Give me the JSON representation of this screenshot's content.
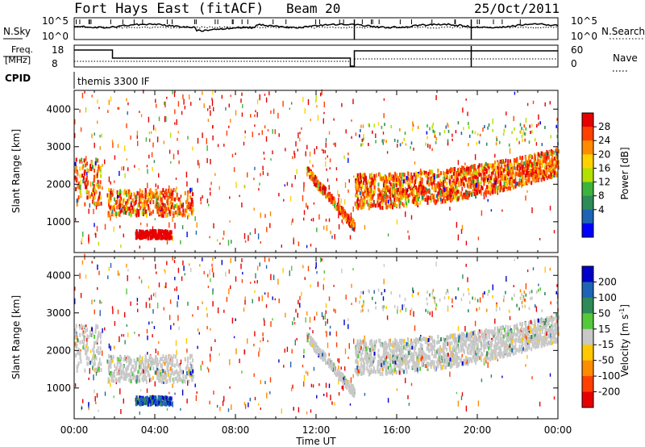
{
  "header": {
    "station": "Fort Hays East (fitACF)",
    "beam": "Beam 20",
    "date": "25/Oct/2011"
  },
  "noise_panel": {
    "left_label": "N.Sky",
    "right_label": "N.Search",
    "left_ticks": [
      "10^5",
      "10^0"
    ],
    "right_ticks": [
      "10^5",
      "10^0"
    ]
  },
  "freq_panel": {
    "left_label_1": "Freq.",
    "left_label_2": "[MHz]",
    "right_label": "Nave",
    "left_ticks": [
      "18",
      "8"
    ],
    "right_ticks": [
      "60",
      "0"
    ]
  },
  "cpid": {
    "label": "CPID",
    "value": "themis 3300 IF"
  },
  "chart_data": [
    {
      "type": "heatmap",
      "title": "",
      "xlabel": "Time UT",
      "ylabel": "Slant Range [km]",
      "x_ticks": [
        "00:00",
        "04:00",
        "08:00",
        "12:00",
        "16:00",
        "20:00",
        "00:00"
      ],
      "y_ticks": [
        1000,
        2000,
        3000,
        4000
      ],
      "xlim_hours": [
        0,
        24
      ],
      "ylim_km": [
        180,
        4500
      ],
      "colorbar": {
        "label": "Power [dB]",
        "ticks": [
          "28",
          "24",
          "20",
          "16",
          "12",
          "8",
          "4"
        ],
        "colors": [
          "#e60000",
          "#ff4000",
          "#ff8c00",
          "#ffd200",
          "#b4e000",
          "#3cb43c",
          "#2e8b57",
          "#1e64b4",
          "#0000ff"
        ]
      },
      "features": [
        {
          "name": "ground scatter band",
          "start_hour": 0.0,
          "end_hour": 1.3,
          "range_km": [
            1400,
            2600
          ]
        },
        {
          "name": "ground scatter band",
          "start_hour": 1.6,
          "end_hour": 5.9,
          "range_km": [
            1100,
            1800
          ]
        },
        {
          "name": "near-range echoes",
          "start_hour": 3.0,
          "end_hour": 4.8,
          "range_km": [
            500,
            700
          ]
        },
        {
          "name": "descending band",
          "start_hour": 11.5,
          "end_hour": 13.9,
          "range_km": [
            800,
            2300
          ]
        },
        {
          "name": "main band",
          "start_hour": 13.9,
          "end_hour": 24.0,
          "range_km": [
            1300,
            2900
          ]
        }
      ]
    },
    {
      "type": "heatmap",
      "title": "",
      "xlabel": "Time UT",
      "ylabel": "Slant Range [km]",
      "x_ticks": [
        "00:00",
        "04:00",
        "08:00",
        "12:00",
        "16:00",
        "20:00",
        "00:00"
      ],
      "y_ticks": [
        1000,
        2000,
        3000,
        4000
      ],
      "xlim_hours": [
        0,
        24
      ],
      "ylim_km": [
        180,
        4500
      ],
      "colorbar": {
        "label": "Velocity [m s^-1]",
        "ticks": [
          "200",
          "100",
          "50",
          "15",
          "-15",
          "-50",
          "-100",
          "-200"
        ],
        "colors": [
          "#0000c8",
          "#1e64b4",
          "#2e8b57",
          "#56c83c",
          "#c8c8c8",
          "#ffc800",
          "#ff8c00",
          "#ff4000",
          "#e60000"
        ]
      }
    }
  ]
}
